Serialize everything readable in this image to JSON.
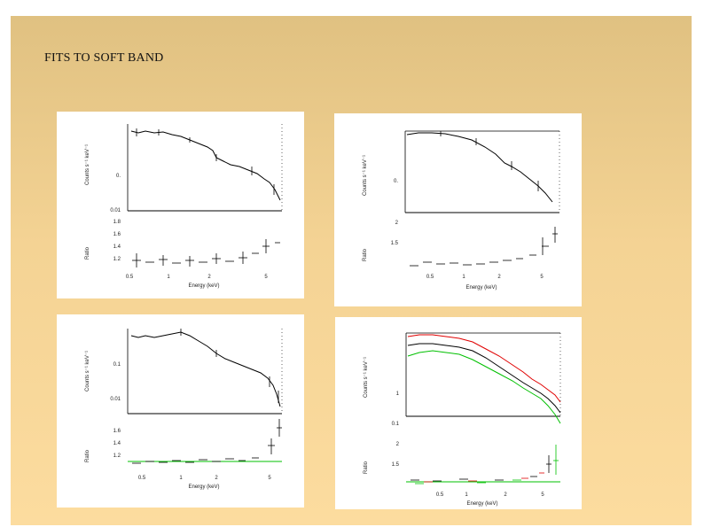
{
  "slide": {
    "title": "FITS TO SOFT BAND",
    "background_top": "#e0c181",
    "background_bottom": "#fcdc9f"
  },
  "panels": [
    {
      "id": "top-left",
      "counts_label": "Counts s⁻¹ keV⁻¹",
      "ratio_label": "Ratio",
      "xlabel": "Energy (keV)",
      "counts_ticks": [
        "0.",
        "0.01"
      ],
      "ratio_ticks": [
        "1.8",
        "1.6",
        "1.4",
        "1.2"
      ],
      "x_ticks": [
        "0.5",
        "1",
        "2",
        "5"
      ]
    },
    {
      "id": "top-right",
      "counts_label": "Counts s⁻¹ keV⁻¹",
      "ratio_label": "Ratio",
      "xlabel": "Energy (keV)",
      "counts_ticks": [
        "0."
      ],
      "ratio_ticks": [
        "2",
        "1.5"
      ],
      "x_ticks": [
        "0.5",
        "1",
        "2",
        "5"
      ]
    },
    {
      "id": "bottom-left",
      "counts_label": "Counts s⁻¹ keV⁻¹",
      "ratio_label": "Ratio",
      "xlabel": "Energy (keV)",
      "counts_ticks": [
        "0.1",
        "0.01"
      ],
      "ratio_ticks": [
        "1.6",
        "1.4",
        "1.2"
      ],
      "x_ticks": [
        "0.5",
        "1",
        "2",
        "5"
      ]
    },
    {
      "id": "bottom-right",
      "counts_label": "Counts s⁻¹ keV⁻¹",
      "ratio_label": "Ratio",
      "xlabel": "Energy (keV)",
      "counts_ticks": [
        "1",
        "0.1"
      ],
      "ratio_ticks": [
        "2",
        "1.5"
      ],
      "x_ticks": [
        "0.5",
        "1",
        "2",
        "5"
      ],
      "series_colors": [
        "#000000",
        "#e00000",
        "#00c000"
      ],
      "model_line_color": "#00c000"
    }
  ]
}
